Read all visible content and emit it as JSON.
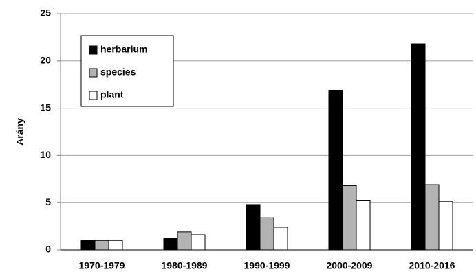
{
  "chart_data": {
    "type": "bar",
    "y_label": "Arány",
    "categories": [
      "1970-1979",
      "1980-1989",
      "1990-1999",
      "2000-2009",
      "2010-2016"
    ],
    "series": [
      {
        "name": "herbarium",
        "color": "#000000",
        "values": [
          1.0,
          1.2,
          4.8,
          16.9,
          21.8
        ]
      },
      {
        "name": "species",
        "color": "#b3b3b3",
        "values": [
          1.0,
          1.9,
          3.4,
          6.8,
          6.9
        ]
      },
      {
        "name": "plant",
        "color": "#ffffff",
        "values": [
          1.0,
          1.6,
          2.4,
          5.2,
          5.1
        ]
      }
    ],
    "ylim": [
      0,
      25
    ],
    "yticks": [
      0,
      5,
      10,
      15,
      20,
      25
    ],
    "grid": true,
    "legend": "upper left"
  }
}
